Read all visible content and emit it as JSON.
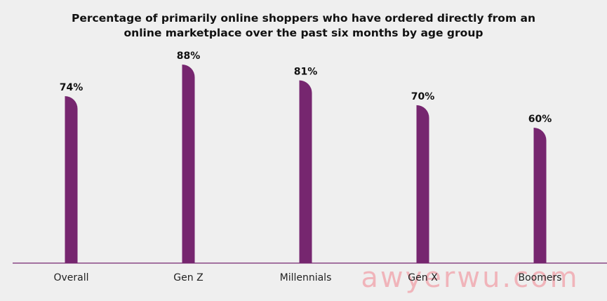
{
  "chart_data": {
    "type": "bar",
    "title": "Percentage of primarily online shoppers who have ordered directly from an online marketplace over the past six months by age group",
    "categories": [
      "Overall",
      "Gen Z",
      "Millennials",
      "Gen X",
      "Boomers"
    ],
    "values": [
      74,
      88,
      81,
      70,
      60
    ],
    "value_labels": [
      "74%",
      "88%",
      "81%",
      "70%",
      "60%"
    ],
    "color": "#76266f",
    "ylim": [
      0,
      100
    ],
    "watermark": "awyerwu.com"
  }
}
